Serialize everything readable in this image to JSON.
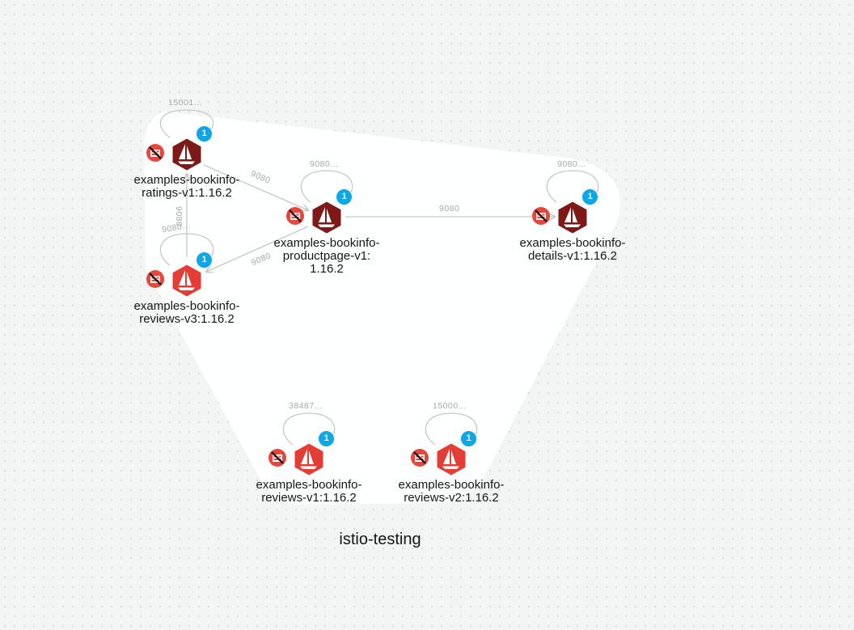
{
  "namespace": "istio-testing",
  "colors": {
    "background": "#f3f4f4",
    "group_fill": "#ffffff",
    "node_dark": "#7d1a17",
    "node_light": "#e33d35",
    "badge": "#0ea5e9",
    "no_proxy": "#e8453c",
    "edge": "#c7c7c7",
    "edge_label": "#a8a8a8"
  },
  "icons": {
    "node": "istio-sailboat-icon",
    "status": "no-sidecar-icon"
  },
  "nodes": [
    {
      "id": "ratings",
      "name": "ratings-node",
      "shade": "dark",
      "badge": "1",
      "label": [
        "examples-bookinfo-",
        "ratings-v1:1.16.2"
      ],
      "loop_label": "15001..."
    },
    {
      "id": "reviews_v3",
      "name": "reviews-v3-node",
      "shade": "light",
      "badge": "1",
      "label": [
        "examples-bookinfo-",
        "reviews-v3:1.16.2"
      ],
      "loop_label": "9080..."
    },
    {
      "id": "productpage",
      "name": "productpage-node",
      "shade": "dark",
      "badge": "1",
      "label": [
        "examples-bookinfo-",
        "productpage-v1:",
        "1.16.2"
      ],
      "loop_label": "9080..."
    },
    {
      "id": "details",
      "name": "details-node",
      "shade": "dark",
      "badge": "1",
      "label": [
        "examples-bookinfo-",
        "details-v1:1.16.2"
      ],
      "loop_label": "9080..."
    },
    {
      "id": "reviews_v1",
      "name": "reviews-v1-node",
      "shade": "light",
      "badge": "1",
      "label": [
        "examples-bookinfo-",
        "reviews-v1:1.16.2"
      ],
      "loop_label": "38487..."
    },
    {
      "id": "reviews_v2",
      "name": "reviews-v2-node",
      "shade": "light",
      "badge": "1",
      "label": [
        "examples-bookinfo-",
        "reviews-v2:1.16.2"
      ],
      "loop_label": "15000..."
    }
  ],
  "edges": [
    {
      "id": "ratings_to_productpage",
      "label": "9080"
    },
    {
      "id": "productpage_to_reviews_v3",
      "label": "9080"
    },
    {
      "id": "reviews_v3_to_ratings",
      "label": "9080"
    },
    {
      "id": "productpage_to_details",
      "label": "9080"
    }
  ]
}
